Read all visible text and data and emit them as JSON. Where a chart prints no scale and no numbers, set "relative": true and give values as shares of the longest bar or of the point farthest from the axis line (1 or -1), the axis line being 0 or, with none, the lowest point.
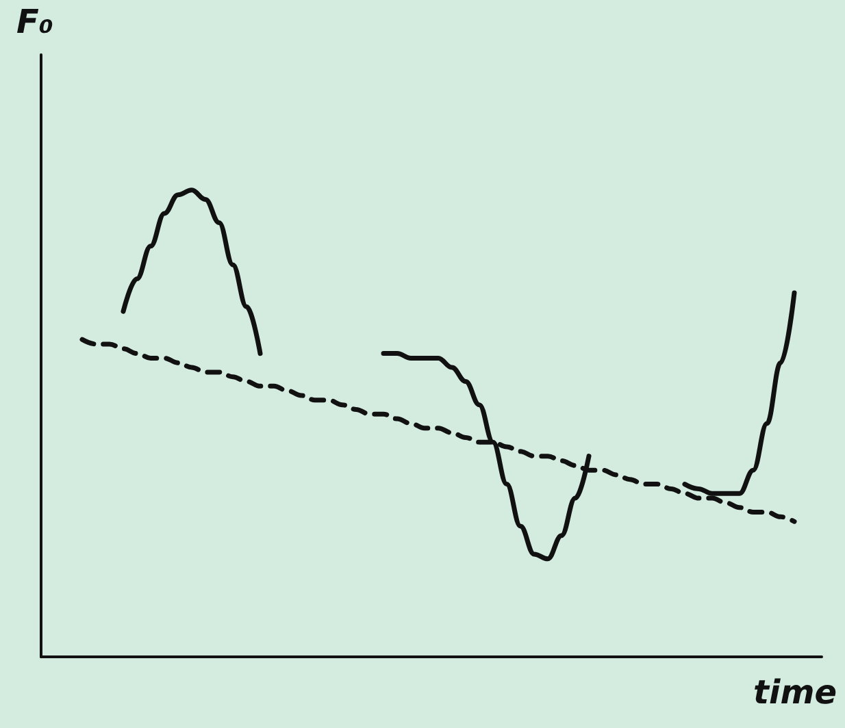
{
  "chart_data": {
    "type": "line",
    "relative": true,
    "xlabel": "time",
    "ylabel": "F₀",
    "marker": "none",
    "grid": false,
    "categories": [
      null,
      null,
      null,
      null,
      null,
      null,
      null,
      null,
      null,
      null,
      null,
      null,
      null,
      null,
      null,
      null,
      null,
      null,
      null,
      null,
      null,
      null,
      null,
      null,
      null,
      null,
      null,
      null,
      null,
      null,
      null,
      null,
      null,
      null,
      null,
      null,
      null,
      null,
      null,
      null,
      null,
      null,
      null,
      null,
      null,
      null,
      null,
      null,
      null,
      null,
      null,
      null,
      null,
      null,
      null,
      null,
      null,
      null
    ],
    "series": [
      {
        "color": "#111111",
        "line_style": "dashed",
        "values": [
          null,
          null,
          null,
          0.68,
          0.67,
          0.67,
          0.66,
          0.65,
          0.64,
          0.64,
          0.63,
          0.62,
          0.61,
          0.61,
          0.6,
          0.59,
          0.58,
          0.58,
          0.57,
          0.56,
          0.55,
          0.55,
          0.54,
          0.53,
          0.52,
          0.52,
          0.51,
          0.5,
          0.49,
          0.49,
          0.48,
          0.47,
          0.46,
          0.46,
          0.45,
          0.44,
          0.43,
          0.43,
          0.42,
          0.41,
          0.4,
          0.4,
          0.39,
          0.38,
          0.37,
          0.37,
          0.36,
          0.35,
          0.34,
          0.34,
          0.33,
          0.32,
          0.31,
          0.31,
          0.3,
          0.29,
          null,
          null
        ]
      },
      {
        "color": "#111111",
        "line_style": "solid",
        "values": [
          null,
          null,
          null,
          null,
          null,
          null,
          0.74,
          0.81,
          0.88,
          0.95,
          0.99,
          1.0,
          0.98,
          0.93,
          0.84,
          0.75,
          0.65,
          null,
          null,
          null,
          null,
          null,
          null,
          null,
          null,
          null,
          null,
          null,
          null,
          null,
          null,
          null,
          null,
          null,
          null,
          null,
          null,
          null,
          null,
          null,
          null,
          null,
          null,
          null,
          null,
          null,
          null,
          null,
          null,
          null,
          null,
          null,
          null,
          null,
          null,
          null,
          null,
          null
        ]
      },
      {
        "color": "#111111",
        "line_style": "solid",
        "values": [
          null,
          null,
          null,
          null,
          null,
          null,
          null,
          null,
          null,
          null,
          null,
          null,
          null,
          null,
          null,
          null,
          null,
          null,
          null,
          null,
          null,
          null,
          null,
          null,
          null,
          0.65,
          0.65,
          0.64,
          0.64,
          0.64,
          0.62,
          0.59,
          0.54,
          0.46,
          0.37,
          0.28,
          0.22,
          0.21,
          0.26,
          0.34,
          0.43,
          null,
          null,
          null,
          null,
          null,
          null,
          null,
          null,
          null,
          null,
          null,
          null,
          null,
          null,
          null,
          null,
          null
        ]
      },
      {
        "color": "#111111",
        "line_style": "solid",
        "values": [
          null,
          null,
          null,
          null,
          null,
          null,
          null,
          null,
          null,
          null,
          null,
          null,
          null,
          null,
          null,
          null,
          null,
          null,
          null,
          null,
          null,
          null,
          null,
          null,
          null,
          null,
          null,
          null,
          null,
          null,
          null,
          null,
          null,
          null,
          null,
          null,
          null,
          null,
          null,
          null,
          null,
          null,
          null,
          null,
          null,
          null,
          null,
          0.37,
          0.36,
          0.35,
          0.35,
          0.35,
          0.4,
          0.5,
          0.63,
          0.78,
          null,
          null
        ]
      }
    ]
  }
}
